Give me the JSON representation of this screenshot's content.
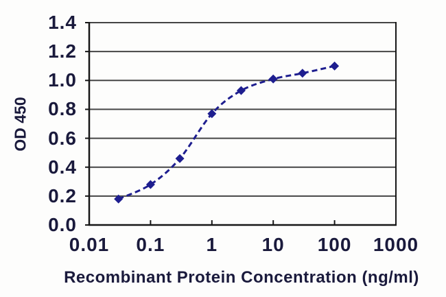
{
  "chart_data": {
    "type": "line",
    "title": "",
    "xlabel": "Recombinant Protein Concentration (ng/ml)",
    "ylabel": "OD 450",
    "x_scale": "log",
    "xlim": [
      0.01,
      1000
    ],
    "ylim": [
      0.0,
      1.4
    ],
    "grid": "horizontal",
    "legend_position": "none",
    "x": [
      0.03,
      0.1,
      0.3,
      1,
      3,
      10,
      30,
      100
    ],
    "y": [
      0.18,
      0.28,
      0.46,
      0.77,
      0.93,
      1.01,
      1.05,
      1.1
    ],
    "x_ticks": [
      {
        "label": "0.01",
        "value": 0.01
      },
      {
        "label": "0.1",
        "value": 0.1
      },
      {
        "label": "1",
        "value": 1
      },
      {
        "label": "10",
        "value": 10
      },
      {
        "label": "100",
        "value": 100
      },
      {
        "label": "1000",
        "value": 1000
      }
    ],
    "y_ticks": [
      {
        "label": "0.0",
        "value": 0.0
      },
      {
        "label": "0.2",
        "value": 0.2
      },
      {
        "label": "0.4",
        "value": 0.4
      },
      {
        "label": "0.6",
        "value": 0.6
      },
      {
        "label": "0.8",
        "value": 0.8
      },
      {
        "label": "1.0",
        "value": 1.0
      },
      {
        "label": "1.2",
        "value": 1.2
      },
      {
        "label": "1.4",
        "value": 1.4
      }
    ],
    "series_name": "",
    "marker": "diamond",
    "line_style": "dashed",
    "colors": {
      "series": "#1e1e8f",
      "grid": "#454545",
      "axis": "#161616",
      "text": "#1a1a3c",
      "background": "#fdfdfc"
    }
  }
}
